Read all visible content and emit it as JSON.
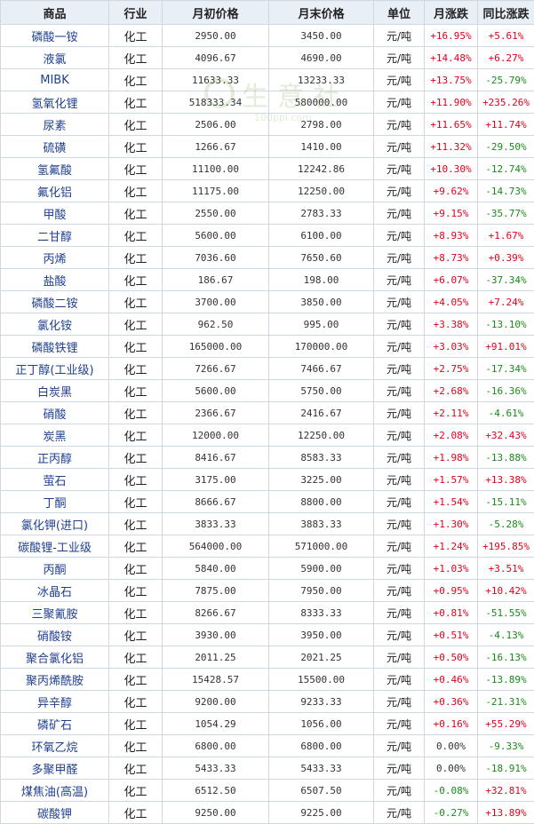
{
  "table": {
    "headers": {
      "name": "商品",
      "industry": "行业",
      "start_price": "月初价格",
      "end_price": "月末价格",
      "unit": "单位",
      "month_change": "月涨跌",
      "yoy_change": "同比涨跌"
    },
    "rows": [
      {
        "name": "磷酸一铵",
        "industry": "化工",
        "start": "2950.00",
        "end": "3450.00",
        "unit": "元/吨",
        "month": "+16.95%",
        "yoy": "+5.61%"
      },
      {
        "name": "液氯",
        "industry": "化工",
        "start": "4096.67",
        "end": "4690.00",
        "unit": "元/吨",
        "month": "+14.48%",
        "yoy": "+6.27%"
      },
      {
        "name": "MIBK",
        "industry": "化工",
        "start": "11633.33",
        "end": "13233.33",
        "unit": "元/吨",
        "month": "+13.75%",
        "yoy": "-25.79%"
      },
      {
        "name": "氢氧化锂",
        "industry": "化工",
        "start": "518333.34",
        "end": "580000.00",
        "unit": "元/吨",
        "month": "+11.90%",
        "yoy": "+235.26%"
      },
      {
        "name": "尿素",
        "industry": "化工",
        "start": "2506.00",
        "end": "2798.00",
        "unit": "元/吨",
        "month": "+11.65%",
        "yoy": "+11.74%"
      },
      {
        "name": "硫磺",
        "industry": "化工",
        "start": "1266.67",
        "end": "1410.00",
        "unit": "元/吨",
        "month": "+11.32%",
        "yoy": "-29.50%"
      },
      {
        "name": "氢氟酸",
        "industry": "化工",
        "start": "11100.00",
        "end": "12242.86",
        "unit": "元/吨",
        "month": "+10.30%",
        "yoy": "-12.74%"
      },
      {
        "name": "氟化铝",
        "industry": "化工",
        "start": "11175.00",
        "end": "12250.00",
        "unit": "元/吨",
        "month": "+9.62%",
        "yoy": "-14.73%"
      },
      {
        "name": "甲酸",
        "industry": "化工",
        "start": "2550.00",
        "end": "2783.33",
        "unit": "元/吨",
        "month": "+9.15%",
        "yoy": "-35.77%"
      },
      {
        "name": "二甘醇",
        "industry": "化工",
        "start": "5600.00",
        "end": "6100.00",
        "unit": "元/吨",
        "month": "+8.93%",
        "yoy": "+1.67%"
      },
      {
        "name": "丙烯",
        "industry": "化工",
        "start": "7036.60",
        "end": "7650.60",
        "unit": "元/吨",
        "month": "+8.73%",
        "yoy": "+0.39%"
      },
      {
        "name": "盐酸",
        "industry": "化工",
        "start": "186.67",
        "end": "198.00",
        "unit": "元/吨",
        "month": "+6.07%",
        "yoy": "-37.34%"
      },
      {
        "name": "磷酸二铵",
        "industry": "化工",
        "start": "3700.00",
        "end": "3850.00",
        "unit": "元/吨",
        "month": "+4.05%",
        "yoy": "+7.24%"
      },
      {
        "name": "氯化铵",
        "industry": "化工",
        "start": "962.50",
        "end": "995.00",
        "unit": "元/吨",
        "month": "+3.38%",
        "yoy": "-13.10%"
      },
      {
        "name": "磷酸铁锂",
        "industry": "化工",
        "start": "165000.00",
        "end": "170000.00",
        "unit": "元/吨",
        "month": "+3.03%",
        "yoy": "+91.01%"
      },
      {
        "name": "正丁醇(工业级)",
        "industry": "化工",
        "start": "7266.67",
        "end": "7466.67",
        "unit": "元/吨",
        "month": "+2.75%",
        "yoy": "-17.34%"
      },
      {
        "name": "白炭黑",
        "industry": "化工",
        "start": "5600.00",
        "end": "5750.00",
        "unit": "元/吨",
        "month": "+2.68%",
        "yoy": "-16.36%"
      },
      {
        "name": "硝酸",
        "industry": "化工",
        "start": "2366.67",
        "end": "2416.67",
        "unit": "元/吨",
        "month": "+2.11%",
        "yoy": "-4.61%"
      },
      {
        "name": "炭黑",
        "industry": "化工",
        "start": "12000.00",
        "end": "12250.00",
        "unit": "元/吨",
        "month": "+2.08%",
        "yoy": "+32.43%"
      },
      {
        "name": "正丙醇",
        "industry": "化工",
        "start": "8416.67",
        "end": "8583.33",
        "unit": "元/吨",
        "month": "+1.98%",
        "yoy": "-13.88%"
      },
      {
        "name": "萤石",
        "industry": "化工",
        "start": "3175.00",
        "end": "3225.00",
        "unit": "元/吨",
        "month": "+1.57%",
        "yoy": "+13.38%"
      },
      {
        "name": "丁酮",
        "industry": "化工",
        "start": "8666.67",
        "end": "8800.00",
        "unit": "元/吨",
        "month": "+1.54%",
        "yoy": "-15.11%"
      },
      {
        "name": "氯化钾(进口)",
        "industry": "化工",
        "start": "3833.33",
        "end": "3883.33",
        "unit": "元/吨",
        "month": "+1.30%",
        "yoy": "-5.28%"
      },
      {
        "name": "碳酸锂-工业级",
        "industry": "化工",
        "start": "564000.00",
        "end": "571000.00",
        "unit": "元/吨",
        "month": "+1.24%",
        "yoy": "+195.85%"
      },
      {
        "name": "丙酮",
        "industry": "化工",
        "start": "5840.00",
        "end": "5900.00",
        "unit": "元/吨",
        "month": "+1.03%",
        "yoy": "+3.51%"
      },
      {
        "name": "冰晶石",
        "industry": "化工",
        "start": "7875.00",
        "end": "7950.00",
        "unit": "元/吨",
        "month": "+0.95%",
        "yoy": "+10.42%"
      },
      {
        "name": "三聚氰胺",
        "industry": "化工",
        "start": "8266.67",
        "end": "8333.33",
        "unit": "元/吨",
        "month": "+0.81%",
        "yoy": "-51.55%"
      },
      {
        "name": "硝酸铵",
        "industry": "化工",
        "start": "3930.00",
        "end": "3950.00",
        "unit": "元/吨",
        "month": "+0.51%",
        "yoy": "-4.13%"
      },
      {
        "name": "聚合氯化铝",
        "industry": "化工",
        "start": "2011.25",
        "end": "2021.25",
        "unit": "元/吨",
        "month": "+0.50%",
        "yoy": "-16.13%"
      },
      {
        "name": "聚丙烯酰胺",
        "industry": "化工",
        "start": "15428.57",
        "end": "15500.00",
        "unit": "元/吨",
        "month": "+0.46%",
        "yoy": "-13.89%"
      },
      {
        "name": "异辛醇",
        "industry": "化工",
        "start": "9200.00",
        "end": "9233.33",
        "unit": "元/吨",
        "month": "+0.36%",
        "yoy": "-21.31%"
      },
      {
        "name": "磷矿石",
        "industry": "化工",
        "start": "1054.29",
        "end": "1056.00",
        "unit": "元/吨",
        "month": "+0.16%",
        "yoy": "+55.29%"
      },
      {
        "name": "环氧乙烷",
        "industry": "化工",
        "start": "6800.00",
        "end": "6800.00",
        "unit": "元/吨",
        "month": "0.00%",
        "yoy": "-9.33%"
      },
      {
        "name": "多聚甲醛",
        "industry": "化工",
        "start": "5433.33",
        "end": "5433.33",
        "unit": "元/吨",
        "month": "0.00%",
        "yoy": "-18.91%"
      },
      {
        "name": "煤焦油(高温)",
        "industry": "化工",
        "start": "6512.50",
        "end": "6507.50",
        "unit": "元/吨",
        "month": "-0.08%",
        "yoy": "+32.81%"
      },
      {
        "name": "碳酸钾",
        "industry": "化工",
        "start": "9250.00",
        "end": "9225.00",
        "unit": "元/吨",
        "month": "-0.27%",
        "yoy": "+13.89%"
      }
    ]
  },
  "watermark": {
    "text": "生意社",
    "url": "100ppi.com"
  },
  "colors": {
    "rise": "#e0001b",
    "fall": "#1a8a1a",
    "header_bg": "#e9eff6",
    "name_link": "#1f3f8f"
  },
  "icons": {
    "watermark_logo": "shengyishe-logo-icon"
  }
}
